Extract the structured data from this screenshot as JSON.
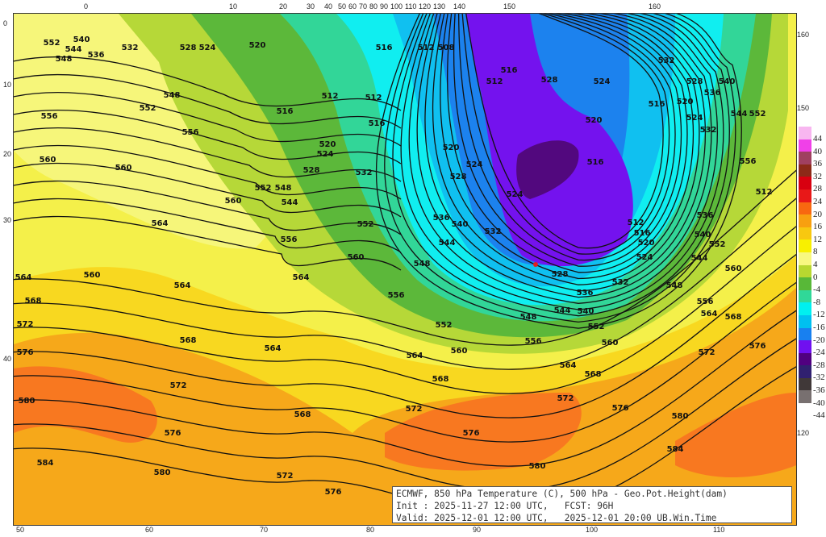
{
  "info_box": {
    "line1": "ECMWF, 850 hPa Temperature (C), 500 hPa - Geo.Pot.Height(dam)",
    "line2": "Init : 2025-11-27 12:00 UTC,   FCST: 96H",
    "line3": "Valid: 2025-12-01 12:00 UTC,   2025-12-01 20:00 UB.Win.Time"
  },
  "axes": {
    "top": [
      "0",
      "10",
      "20",
      "30",
      "40",
      "50",
      "60",
      "70",
      "80",
      "90",
      "100",
      "110",
      "120",
      "130",
      "140",
      "150",
      "160"
    ],
    "bottom": [
      "50",
      "60",
      "70",
      "80",
      "90",
      "100",
      "110"
    ],
    "left": [
      "0",
      "10",
      "20",
      "30",
      "40"
    ],
    "right": [
      "160",
      "150",
      "120"
    ]
  },
  "colorbar": {
    "labels": [
      "44",
      "40",
      "36",
      "32",
      "28",
      "24",
      "20",
      "16",
      "12",
      "8",
      "4",
      "0",
      "-4",
      "-8",
      "-12",
      "-16",
      "-20",
      "-24",
      "-28",
      "-32",
      "-36",
      "-40",
      "-44"
    ],
    "colors": [
      "#f8b6f0",
      "#f040e8",
      "#a04060",
      "#8c2a18",
      "#d80010",
      "#e81818",
      "#f86810",
      "#f8a010",
      "#f8c810",
      "#f8f000",
      "#f8f880",
      "#b8d830",
      "#58b838",
      "#30d898",
      "#00f0f0",
      "#00c0f0",
      "#1880f0",
      "#7010f0",
      "#500080",
      "#302070",
      "#403838",
      "#787070"
    ]
  },
  "contours": {
    "labels": [
      "552",
      "548",
      "544",
      "540",
      "536",
      "532",
      "528",
      "524",
      "520",
      "516",
      "512",
      "508",
      "512",
      "516",
      "528",
      "524",
      "532",
      "528",
      "536",
      "540",
      "544",
      "552",
      "548",
      "552",
      "556",
      "556",
      "560",
      "560",
      "564",
      "560",
      "552",
      "548",
      "544",
      "532",
      "528",
      "524",
      "520",
      "516",
      "512",
      "512",
      "516",
      "520",
      "524",
      "528",
      "524",
      "520",
      "516",
      "512",
      "516",
      "520",
      "524",
      "528",
      "532",
      "536",
      "540",
      "544",
      "548",
      "552",
      "556",
      "560",
      "564",
      "568",
      "572",
      "576",
      "580",
      "584",
      "580",
      "576",
      "572",
      "568",
      "564",
      "560",
      "552",
      "556",
      "548",
      "544",
      "540",
      "536",
      "532",
      "552",
      "556",
      "560",
      "564",
      "564",
      "568",
      "572",
      "576",
      "580",
      "584",
      "580",
      "576",
      "572",
      "568",
      "564",
      "560",
      "564",
      "568",
      "572",
      "576",
      "560",
      "564",
      "568",
      "572",
      "576",
      "556",
      "552",
      "548",
      "544",
      "540",
      "536",
      "532",
      "524",
      "520",
      "516",
      "512",
      "556",
      "548"
    ]
  }
}
